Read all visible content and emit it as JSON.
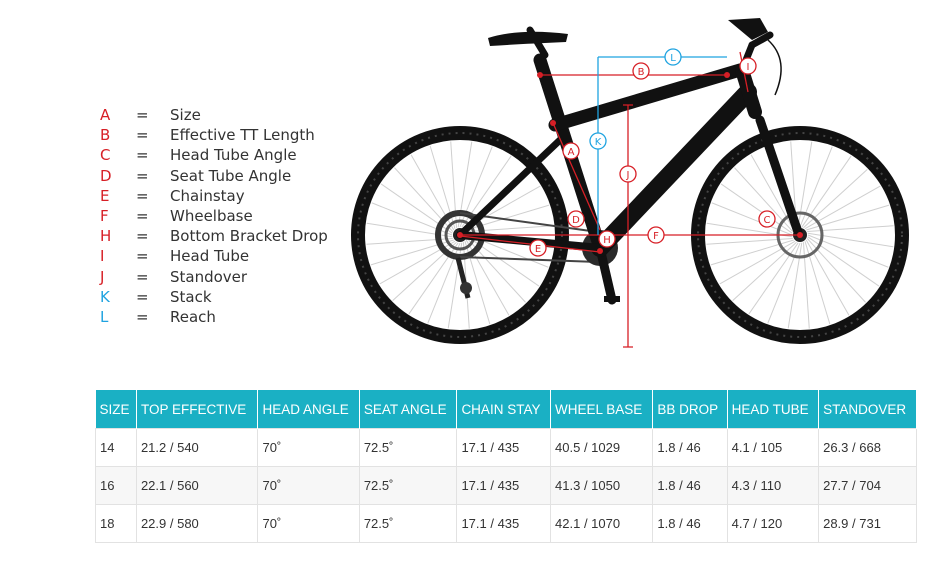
{
  "legend": [
    {
      "letter": "A",
      "text": "Size",
      "color": "#d71f26"
    },
    {
      "letter": "B",
      "text": "Effective TT Length",
      "color": "#d71f26"
    },
    {
      "letter": "C",
      "text": "Head Tube Angle",
      "color": "#d71f26"
    },
    {
      "letter": "D",
      "text": "Seat Tube Angle",
      "color": "#d71f26"
    },
    {
      "letter": "E",
      "text": "Chainstay",
      "color": "#d71f26"
    },
    {
      "letter": "F",
      "text": "Wheelbase",
      "color": "#d71f26"
    },
    {
      "letter": "H",
      "text": "Bottom Bracket Drop",
      "color": "#d71f26"
    },
    {
      "letter": "I",
      "text": "Head Tube",
      "color": "#d71f26"
    },
    {
      "letter": "J",
      "text": "Standover",
      "color": "#d71f26"
    },
    {
      "letter": "K",
      "text": "Stack",
      "color": "#1fa3e0"
    },
    {
      "letter": "L",
      "text": "Reach",
      "color": "#1fa3e0"
    }
  ],
  "legend_eq": "=",
  "diagram_labels": [
    "A",
    "B",
    "C",
    "D",
    "E",
    "F",
    "H",
    "I",
    "J",
    "K",
    "L"
  ],
  "colors": {
    "accent_red": "#d71f26",
    "accent_blue": "#1fa3e0",
    "header_teal": "#1ab0c4"
  },
  "table": {
    "headers": [
      "SIZE",
      "TOP EFFECTIVE",
      "HEAD ANGLE",
      "SEAT ANGLE",
      "CHAIN STAY",
      "WHEEL BASE",
      "BB DROP",
      "HEAD TUBE",
      "STANDOVER"
    ],
    "rows": [
      [
        "14",
        "21.2 / 540",
        "70˚",
        "72.5˚",
        "17.1 / 435",
        "40.5 / 1029",
        "1.8 / 46",
        "4.1 / 105",
        "26.3 / 668"
      ],
      [
        "16",
        "22.1 / 560",
        "70˚",
        "72.5˚",
        "17.1 / 435",
        "41.3 / 1050",
        "1.8 / 46",
        "4.3 / 110",
        "27.7 / 704"
      ],
      [
        "18",
        "22.9 / 580",
        "70˚",
        "72.5˚",
        "17.1 / 435",
        "42.1 / 1070",
        "1.8 / 46",
        "4.7 / 120",
        "28.9 / 731"
      ]
    ]
  }
}
